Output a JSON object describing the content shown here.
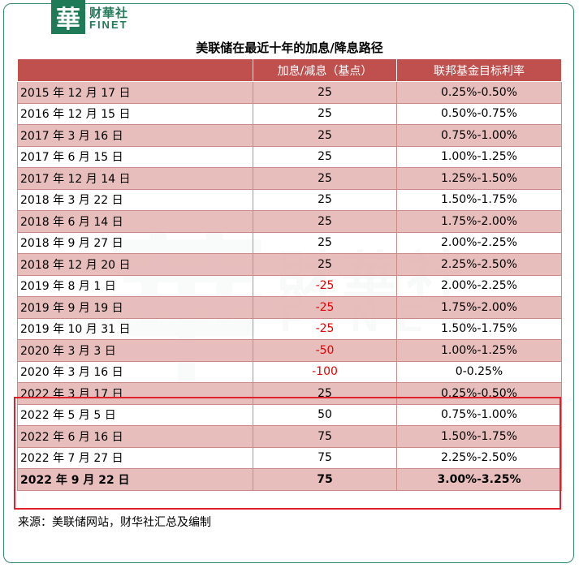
{
  "brand": {
    "logo_char": "華",
    "name_cn": "财華社",
    "name_en": "FINET"
  },
  "title": "美联储在最近十年的加息/降息路径",
  "table": {
    "headers": [
      "",
      "加息/减息（基点）",
      "联邦基金目标利率"
    ],
    "rows": [
      {
        "date": "2015 年 12 月 17 日",
        "bp": "25",
        "rate": "0.25%-0.50%"
      },
      {
        "date": "2016 年 12 月 15 日",
        "bp": "25",
        "rate": "0.50%-0.75%"
      },
      {
        "date": "2017 年 3 月 16 日",
        "bp": "25",
        "rate": "0.75%-1.00%"
      },
      {
        "date": "2017 年 6 月 15 日",
        "bp": "25",
        "rate": "1.00%-1.25%"
      },
      {
        "date": "2017 年 12 月 14 日",
        "bp": "25",
        "rate": "1.25%-1.50%"
      },
      {
        "date": "2018 年 3 月 22 日",
        "bp": "25",
        "rate": "1.50%-1.75%"
      },
      {
        "date": "2018 年 6 月 14 日",
        "bp": "25",
        "rate": "1.75%-2.00%"
      },
      {
        "date": "2018 年 9 月 27 日",
        "bp": "25",
        "rate": "2.00%-2.25%"
      },
      {
        "date": "2018 年 12 月 20 日",
        "bp": "25",
        "rate": "2.25%-2.50%"
      },
      {
        "date": "2019 年 8 月 1 日",
        "bp": "-25",
        "rate": "2.00%-2.25%"
      },
      {
        "date": "2019 年 9 月 19 日",
        "bp": "-25",
        "rate": "1.75%-2.00%"
      },
      {
        "date": "2019 年 10 月 31 日",
        "bp": "-25",
        "rate": "1.50%-1.75%"
      },
      {
        "date": "2020 年 3 月 3 日",
        "bp": "-50",
        "rate": "1.00%-1.25%"
      },
      {
        "date": "2020 年 3 月 16 日",
        "bp": "-100",
        "rate": "0-0.25%"
      },
      {
        "date": "2022 年 3 月 17 日",
        "bp": "25",
        "rate": "0.25%-0.50%"
      },
      {
        "date": "2022 年 5 月 5 日",
        "bp": "50",
        "rate": "0.75%-1.00%"
      },
      {
        "date": "2022 年 6 月 16 日",
        "bp": "75",
        "rate": "1.50%-1.75%"
      },
      {
        "date": "2022 年 7 月 27 日",
        "bp": "75",
        "rate": "2.25%-2.50%"
      },
      {
        "date": "2022 年 9 月 22 日",
        "bp": "75",
        "rate": "3.00%-3.25%"
      }
    ]
  },
  "source": "来源：美联储网站，财华社汇总及编制",
  "colors": {
    "header": "#c0504d",
    "shade": "#e6b8b7",
    "negative": "#e60000",
    "highlight": "#e0202a",
    "brand": "#1f7a57"
  }
}
